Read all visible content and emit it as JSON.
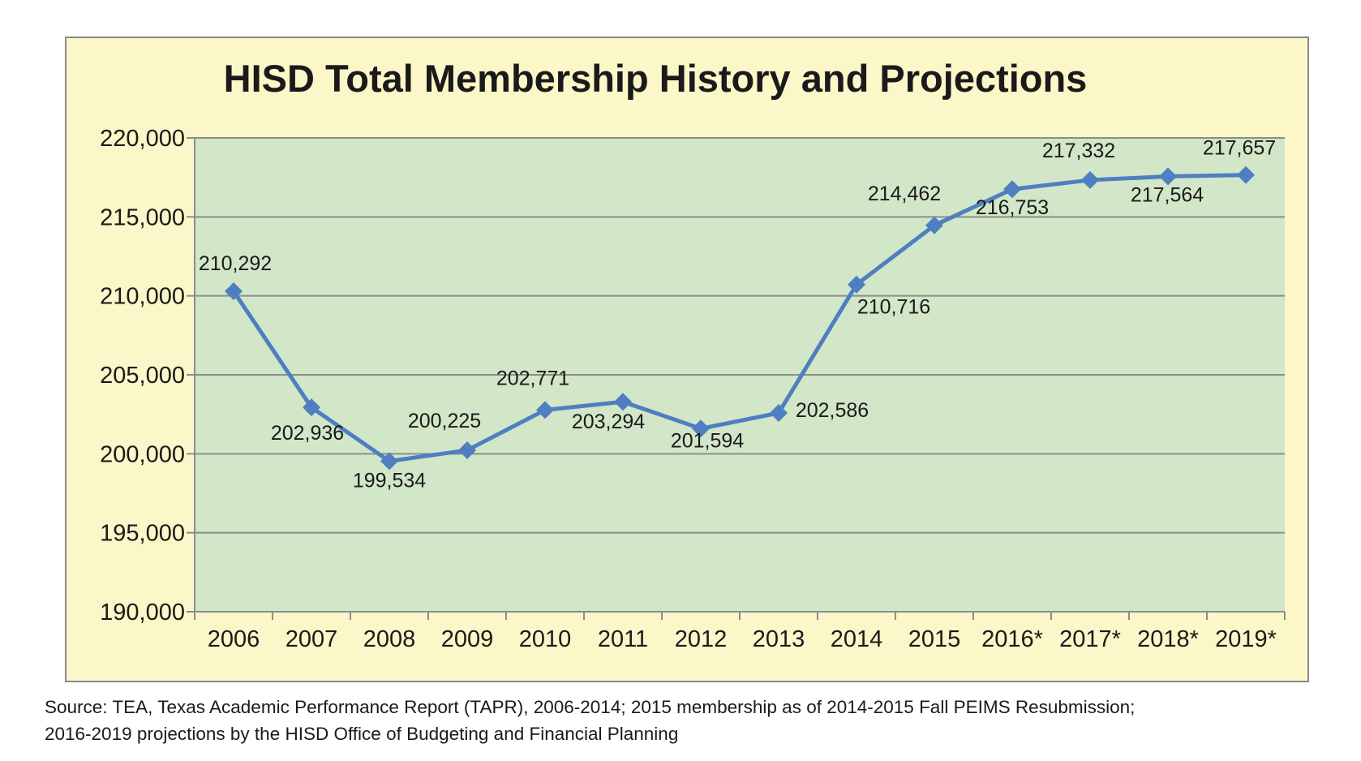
{
  "chart_data": {
    "type": "line",
    "title": "HISD Total Membership History and Projections",
    "categories": [
      "2006",
      "2007",
      "2008",
      "2009",
      "2010",
      "2011",
      "2012",
      "2013",
      "2014",
      "2015",
      "2016*",
      "2017*",
      "2018*",
      "2019*"
    ],
    "series": [
      {
        "values": [
          210292,
          202936,
          199534,
          200225,
          202771,
          203294,
          201594,
          202586,
          210716,
          214462,
          216753,
          217332,
          217564,
          217657
        ],
        "value_labels": [
          "210,292",
          "202,936",
          "199,534",
          "200,225",
          "202,771",
          "203,294",
          "201,594",
          "202,586",
          "210,716",
          "214,462",
          "216,753",
          "217,332",
          "217,564",
          "217,657"
        ]
      }
    ],
    "ylim": [
      190000,
      220000
    ],
    "yticks": [
      190000,
      195000,
      200000,
      205000,
      210000,
      215000,
      220000
    ],
    "ytick_labels": [
      "190,000",
      "195,000",
      "200,000",
      "205,000",
      "210,000",
      "215,000",
      "220,000"
    ],
    "xlabel": "",
    "ylabel": "",
    "grid": "horizontal",
    "legend": "none",
    "colors": {
      "line": "#4f7fc0",
      "plot_background": "#d2e6c8",
      "frame_background": "#fbf7c8",
      "gridline": "#8c8c8c"
    }
  },
  "source_note": {
    "line1": "Source: TEA, Texas Academic Performance Report (TAPR), 2006-2014; 2015 membership as of 2014-2015 Fall PEIMS Resubmission;",
    "line2": "2016-2019 projections by the HISD Office of Budgeting and Financial Planning"
  }
}
